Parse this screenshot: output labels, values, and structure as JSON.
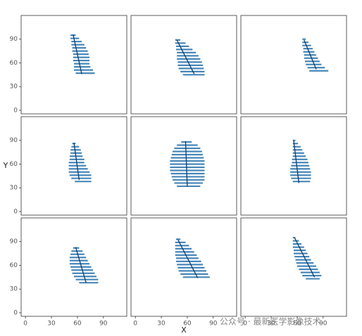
{
  "chart_data": {
    "type": "segment",
    "x_label": "X",
    "y_label": "Y",
    "xlim": [
      -5,
      117
    ],
    "ylim": [
      -4.5,
      120
    ],
    "xticks": [
      0,
      30,
      60,
      90
    ],
    "yticks": [
      0,
      30,
      60,
      90
    ],
    "color": "#2873ad",
    "rib_color": "#0d3f6e",
    "columns": 3,
    "facets": [
      {
        "y": [
          95,
          91,
          87,
          83,
          79,
          75,
          71,
          67,
          63,
          59,
          55,
          51,
          47
        ],
        "x_start": [
          52,
          52,
          53,
          53,
          54,
          54,
          55,
          55,
          55,
          56,
          56,
          56,
          58
        ],
        "x_end": [
          58,
          62,
          65,
          68,
          70,
          72,
          73,
          74,
          74,
          74,
          75,
          78,
          80
        ],
        "midrib_x": [
          55,
          65
        ],
        "midrib_y": [
          96,
          46
        ]
      },
      {
        "y": [
          89,
          85,
          81,
          77,
          73,
          69,
          65,
          61,
          57,
          53,
          49,
          45
        ],
        "x_start": [
          46,
          46,
          47,
          47,
          48,
          48,
          48,
          49,
          49,
          50,
          52,
          55
        ],
        "x_end": [
          52,
          58,
          62,
          66,
          70,
          73,
          75,
          77,
          78,
          79,
          80,
          80
        ],
        "midrib_x": [
          48,
          68
        ],
        "midrib_y": [
          89,
          46
        ]
      },
      {
        "y": [
          90,
          86,
          82,
          78,
          74,
          70,
          66,
          62,
          58,
          54,
          50
        ],
        "x_start": [
          66,
          66,
          66,
          67,
          67,
          68,
          68,
          69,
          70,
          72,
          74
        ],
        "x_end": [
          70,
          73,
          76,
          78,
          80,
          82,
          84,
          86,
          88,
          92,
          96
        ],
        "midrib_x": [
          68,
          82
        ],
        "midrib_y": [
          89,
          52
        ]
      },
      {
        "y": [
          86,
          82,
          78,
          74,
          70,
          66,
          62,
          58,
          54,
          50,
          46,
          42,
          38
        ],
        "x_start": [
          54,
          53,
          52,
          52,
          51,
          51,
          50,
          50,
          50,
          50,
          51,
          53,
          57
        ],
        "x_end": [
          58,
          62,
          64,
          65,
          66,
          68,
          68,
          70,
          72,
          74,
          76,
          76,
          76
        ],
        "midrib_x": [
          56,
          62
        ],
        "midrib_y": [
          87,
          40
        ]
      },
      {
        "y": [
          88,
          84,
          80,
          76,
          72,
          68,
          64,
          60,
          56,
          52,
          48,
          44,
          40,
          36,
          32
        ],
        "x_start": [
          53,
          48,
          45,
          43,
          42,
          41,
          40,
          40,
          40,
          40,
          41,
          42,
          43,
          45,
          48
        ],
        "x_end": [
          65,
          72,
          75,
          77,
          78,
          79,
          80,
          80,
          80,
          80,
          80,
          80,
          80,
          78,
          75
        ],
        "midrib_x": [
          58,
          60
        ],
        "midrib_y": [
          89,
          32
        ]
      },
      {
        "y": [
          90,
          86,
          82,
          78,
          74,
          70,
          66,
          62,
          58,
          54,
          50,
          46,
          42,
          38
        ],
        "x_start": [
          55,
          55,
          55,
          55,
          55,
          55,
          54,
          54,
          53,
          52,
          52,
          52,
          53,
          55
        ],
        "x_end": [
          58,
          61,
          64,
          66,
          68,
          70,
          72,
          73,
          74,
          75,
          76,
          76,
          76,
          75
        ],
        "midrib_x": [
          56,
          62
        ],
        "midrib_y": [
          90,
          36
        ]
      },
      {
        "y": [
          82,
          78,
          74,
          70,
          66,
          62,
          58,
          54,
          50,
          46,
          42,
          38
        ],
        "x_start": [
          55,
          53,
          52,
          51,
          51,
          51,
          52,
          53,
          54,
          56,
          58,
          62
        ],
        "x_end": [
          62,
          66,
          68,
          70,
          72,
          74,
          76,
          78,
          80,
          82,
          84,
          84
        ],
        "midrib_x": [
          58,
          70
        ],
        "midrib_y": [
          83,
          38
        ]
      },
      {
        "y": [
          93,
          89,
          85,
          81,
          77,
          73,
          69,
          65,
          61,
          57,
          53,
          49,
          45
        ],
        "x_start": [
          47,
          46,
          46,
          46,
          46,
          46,
          47,
          47,
          48,
          49,
          50,
          52,
          55
        ],
        "x_end": [
          52,
          58,
          62,
          65,
          68,
          71,
          73,
          76,
          78,
          80,
          82,
          84,
          86
        ],
        "midrib_x": [
          49,
          72
        ],
        "midrib_y": [
          93,
          44
        ]
      },
      {
        "y": [
          95,
          91,
          87,
          83,
          79,
          75,
          71,
          67,
          63,
          59,
          55,
          51,
          47,
          43
        ],
        "x_start": [
          55,
          55,
          55,
          55,
          56,
          56,
          57,
          58,
          59,
          60,
          62,
          64,
          66,
          70
        ],
        "x_end": [
          58,
          62,
          65,
          68,
          70,
          72,
          74,
          76,
          79,
          82,
          84,
          86,
          88,
          86
        ],
        "midrib_x": [
          57,
          80
        ],
        "midrib_y": [
          95,
          45
        ]
      }
    ],
    "watermark": "公众号 · 最新医学影像技术"
  }
}
